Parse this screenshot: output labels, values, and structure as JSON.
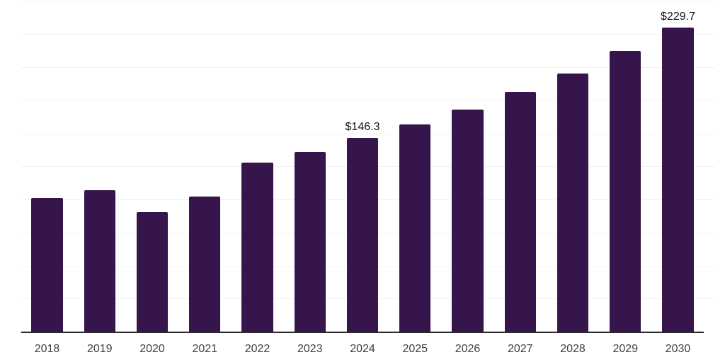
{
  "chart_data": {
    "type": "bar",
    "title": "",
    "xlabel": "",
    "ylabel": "",
    "categories": [
      "2018",
      "2019",
      "2020",
      "2021",
      "2022",
      "2023",
      "2024",
      "2025",
      "2026",
      "2027",
      "2028",
      "2029",
      "2030"
    ],
    "values": [
      101.3,
      106.9,
      90.3,
      101.9,
      128.0,
      136.0,
      146.3,
      156.6,
      168.1,
      181.1,
      195.3,
      212.1,
      229.7
    ],
    "data_labels": {
      "2024": "$146.3",
      "2030": "$229.7"
    },
    "ylim": [
      0,
      250
    ],
    "gridline_step": 25,
    "grid": true,
    "legend_position": "none",
    "y_tick_labels_visible": false,
    "colors": {
      "bar": "#35154C",
      "axis": "#2B2B2B",
      "gridline": "#F2F2F2",
      "x_tick_label": "#3F3F3F",
      "data_label": "#141414",
      "background": "#FFFFFF"
    }
  }
}
